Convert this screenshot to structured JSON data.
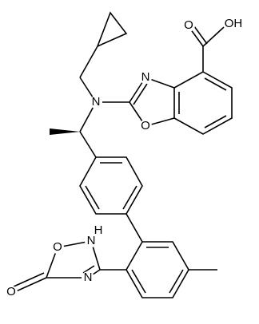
{
  "molecule": {
    "atom_labels": [
      "OH",
      "O",
      "N",
      "O",
      "N",
      "H",
      "N",
      "N",
      "O",
      "O"
    ]
  }
}
